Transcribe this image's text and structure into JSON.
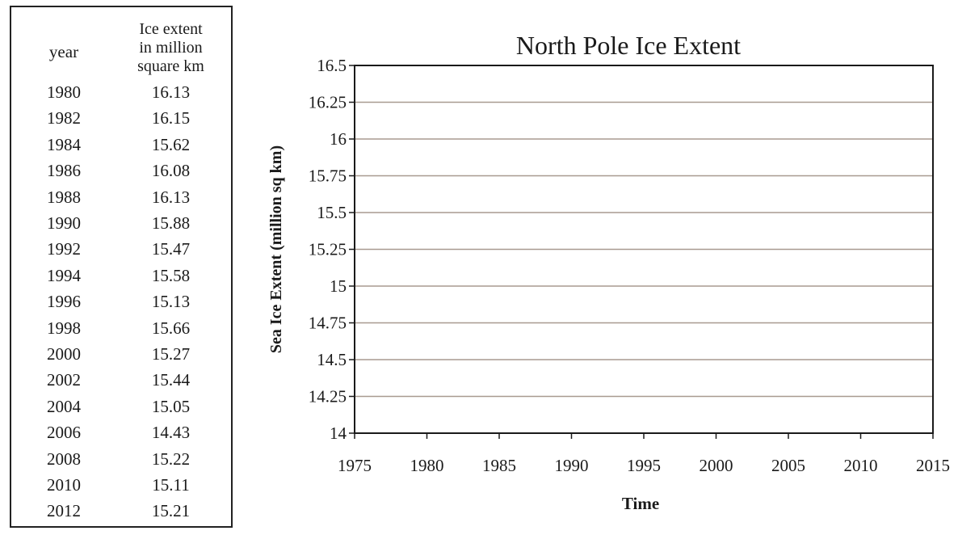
{
  "table": {
    "header_year": "year",
    "header_extent_lines": [
      "Ice extent",
      "in million",
      "square km"
    ],
    "rows": [
      {
        "year": "1980",
        "value": "16.13"
      },
      {
        "year": "1982",
        "value": "16.15"
      },
      {
        "year": "1984",
        "value": "15.62"
      },
      {
        "year": "1986",
        "value": "16.08"
      },
      {
        "year": "1988",
        "value": "16.13"
      },
      {
        "year": "1990",
        "value": "15.88"
      },
      {
        "year": "1992",
        "value": "15.47"
      },
      {
        "year": "1994",
        "value": "15.58"
      },
      {
        "year": "1996",
        "value": "15.13"
      },
      {
        "year": "1998",
        "value": "15.66"
      },
      {
        "year": "2000",
        "value": "15.27"
      },
      {
        "year": "2002",
        "value": "15.44"
      },
      {
        "year": "2004",
        "value": "15.05"
      },
      {
        "year": "2006",
        "value": "14.43"
      },
      {
        "year": "2008",
        "value": "15.22"
      },
      {
        "year": "2010",
        "value": "15.11"
      },
      {
        "year": "2012",
        "value": "15.21"
      }
    ]
  },
  "chart_data": {
    "type": "scatter",
    "title": "North Pole Ice Extent",
    "xlabel": "Time",
    "ylabel": "Sea Ice Extent (million sq km)",
    "xlim": [
      1975,
      2015
    ],
    "ylim": [
      14,
      16.5
    ],
    "xticks": [
      "1975",
      "1980",
      "1985",
      "1990",
      "1995",
      "2000",
      "2005",
      "2010",
      "2015"
    ],
    "yticks": [
      "14",
      "14.25",
      "14.5",
      "14.75",
      "15",
      "15.25",
      "15.5",
      "15.75",
      "16",
      "16.25",
      "16.5"
    ],
    "grid": true,
    "series": [],
    "colors": {
      "gridline": "#a89a90",
      "axis": "#1a1a1a"
    }
  }
}
